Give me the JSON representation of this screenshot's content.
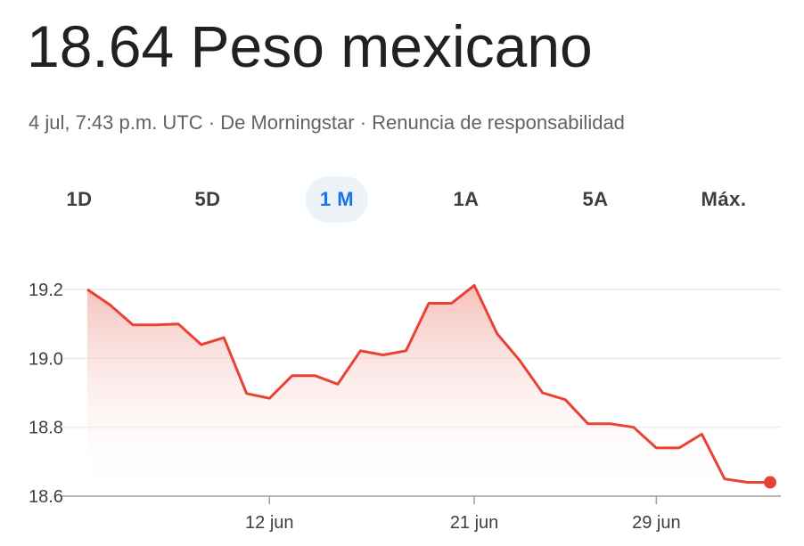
{
  "header": {
    "price": "18.64",
    "currency": "Peso mexicano"
  },
  "meta": {
    "timestamp": "4 jul, 7:43 p.m. UTC",
    "sep1": " · ",
    "source": "De Morningstar",
    "sep2": " · ",
    "disclaimer": "Renuncia de responsabilidad"
  },
  "tabs": [
    {
      "label": "1D",
      "active": false
    },
    {
      "label": "5D",
      "active": false
    },
    {
      "label": "1 M",
      "active": true
    },
    {
      "label": "1A",
      "active": false
    },
    {
      "label": "5A",
      "active": false
    },
    {
      "label": "Máx.",
      "active": false
    }
  ],
  "colors": {
    "line": "#e94235",
    "fill_top": "#f4b4ae",
    "accent": "#1a73e8",
    "grid": "#ececec",
    "axis": "#9aa0a6"
  },
  "chart_data": {
    "type": "area",
    "x": [
      "2024-06-04",
      "2024-06-05",
      "2024-06-06",
      "2024-06-07",
      "2024-06-08",
      "2024-06-09",
      "2024-06-10",
      "2024-06-11",
      "2024-06-12",
      "2024-06-13",
      "2024-06-14",
      "2024-06-15",
      "2024-06-16",
      "2024-06-17",
      "2024-06-18",
      "2024-06-19",
      "2024-06-20",
      "2024-06-21",
      "2024-06-22",
      "2024-06-23",
      "2024-06-24",
      "2024-06-25",
      "2024-06-26",
      "2024-06-27",
      "2024-06-28",
      "2024-06-29",
      "2024-06-30",
      "2024-07-01",
      "2024-07-02",
      "2024-07-03",
      "2024-07-04"
    ],
    "values": [
      19.2,
      19.155,
      19.097,
      19.097,
      19.1,
      19.04,
      19.06,
      18.898,
      18.884,
      18.95,
      18.95,
      18.925,
      19.022,
      19.01,
      19.022,
      19.16,
      19.16,
      19.212,
      19.072,
      18.994,
      18.9,
      18.88,
      18.81,
      18.81,
      18.8,
      18.74,
      18.74,
      18.78,
      18.65,
      18.64,
      18.64
    ],
    "ylim": [
      18.6,
      19.2
    ],
    "yticks": [
      18.6,
      18.8,
      19.0,
      19.2
    ],
    "ytick_labels": [
      "18.6",
      "18.8",
      "19.0",
      "19.2"
    ],
    "xticks": [
      {
        "date": "2024-06-12",
        "label": "12 jun"
      },
      {
        "date": "2024-06-21",
        "label": "21 jun"
      },
      {
        "date": "2024-06-29",
        "label": "29 jun"
      }
    ],
    "grid": true
  }
}
